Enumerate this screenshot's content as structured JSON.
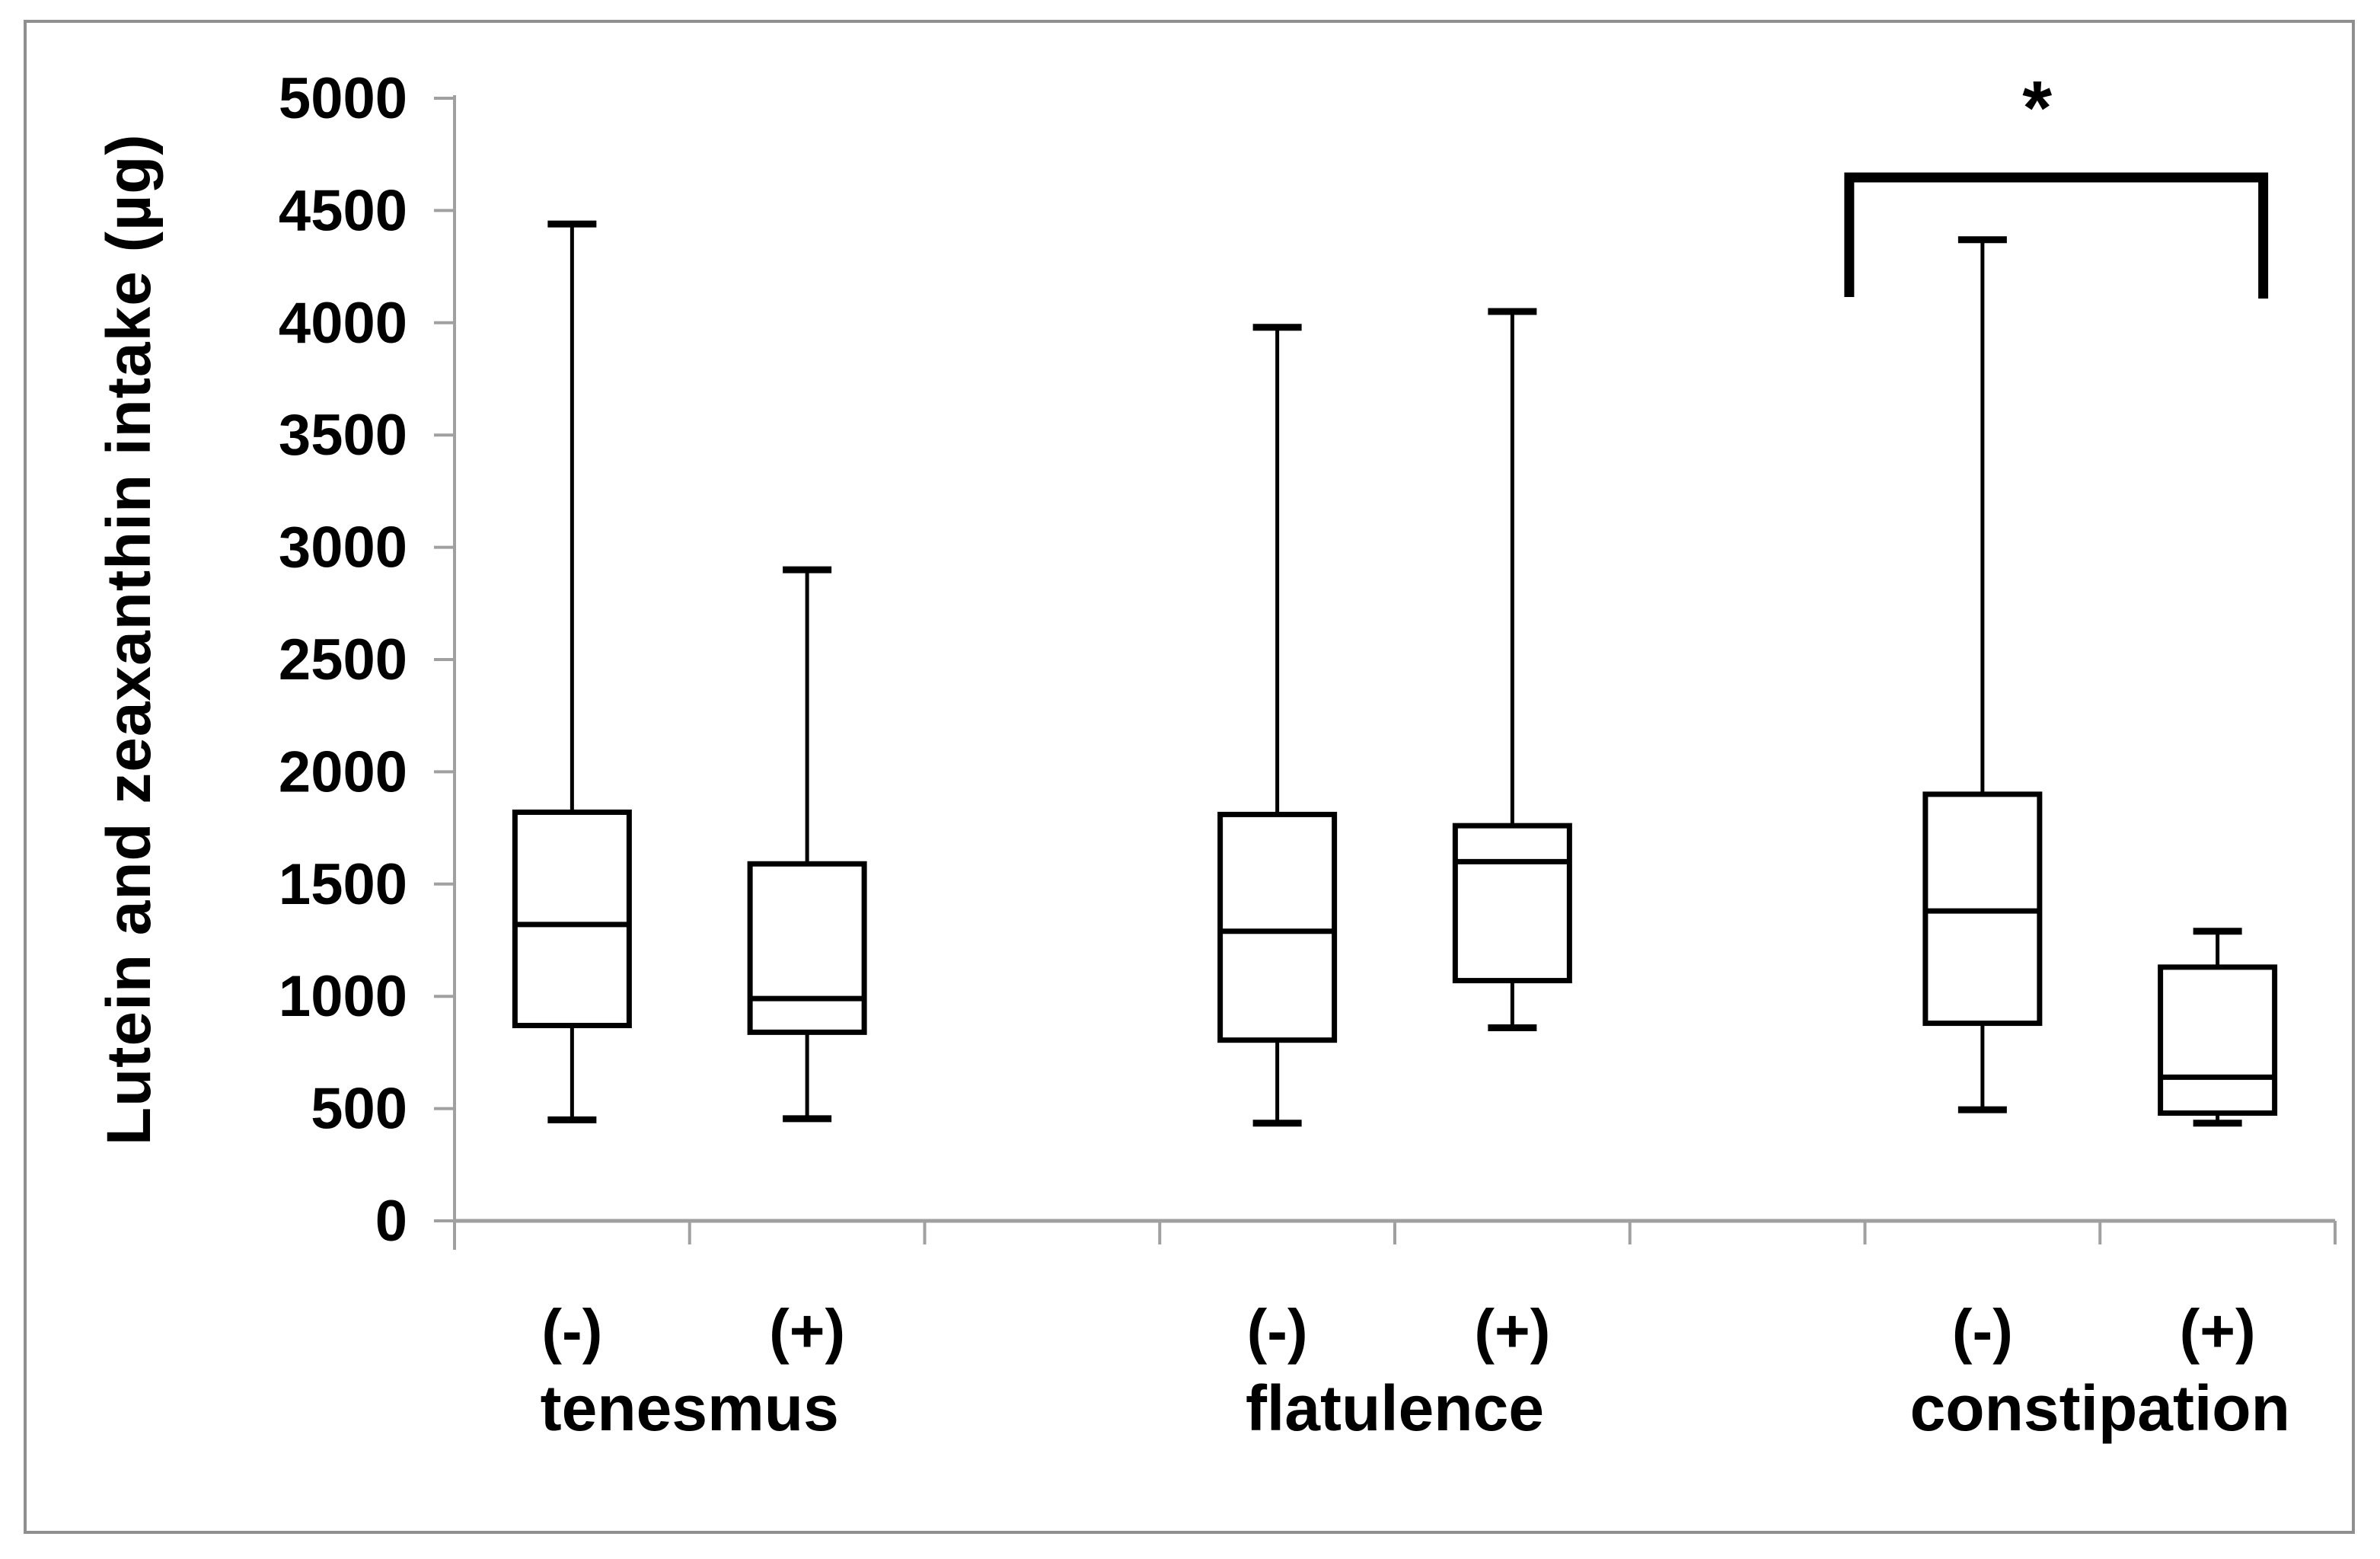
{
  "figure": {
    "background": "#ffffff"
  },
  "chart_data": {
    "type": "boxplot",
    "title": "",
    "xlabel": "",
    "ylabel": "Lutein and zeaxanthin intake (µg)",
    "ylim": [
      0,
      5000
    ],
    "yticks": [
      0,
      500,
      1000,
      1500,
      2000,
      2500,
      3000,
      3500,
      4000,
      4500,
      5000
    ],
    "grid": false,
    "legend": false,
    "groups": [
      {
        "label": "tenesmus",
        "boxes": [
          {
            "label": "(-)",
            "min": 450,
            "q1": 870,
            "median": 1320,
            "q3": 1820,
            "max": 4440
          },
          {
            "label": "(+)",
            "min": 455,
            "q1": 840,
            "median": 990,
            "q3": 1590,
            "max": 2900
          }
        ]
      },
      {
        "label": "flatulence",
        "boxes": [
          {
            "label": "(-)",
            "min": 435,
            "q1": 805,
            "median": 1290,
            "q3": 1810,
            "max": 3980
          },
          {
            "label": "(+)",
            "min": 860,
            "q1": 1070,
            "median": 1600,
            "q3": 1760,
            "max": 4050
          }
        ]
      },
      {
        "label": "constipation",
        "boxes": [
          {
            "label": "(-)",
            "min": 495,
            "q1": 880,
            "median": 1380,
            "q3": 1900,
            "max": 4370
          },
          {
            "label": "(+)",
            "min": 435,
            "q1": 480,
            "median": 640,
            "q3": 1130,
            "max": 1290
          }
        ]
      }
    ],
    "significance": {
      "symbol": "*",
      "group": "constipation",
      "between": [
        "(-)",
        "(+)"
      ]
    }
  },
  "styles": {
    "box_stroke": "#000000",
    "axis_color": "#a0a0a0",
    "text_color": "#000000",
    "background": "#ffffff",
    "frame_border": "#8f8f8f"
  }
}
